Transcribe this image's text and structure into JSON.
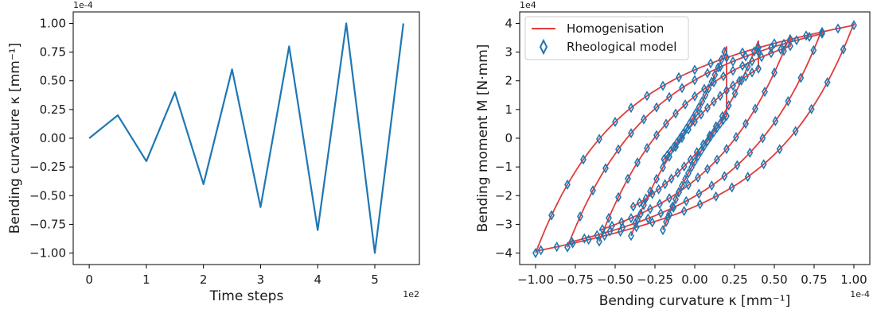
{
  "chart_data": [
    {
      "type": "line",
      "title": "",
      "xlabel": "Time steps",
      "ylabel": "Bending curvature κ [mm⁻¹]",
      "x_offset_label": "1e2",
      "y_offset_label": "1e-4",
      "xlim": [
        -0.28,
        5.78
      ],
      "ylim": [
        -1.1,
        1.1
      ],
      "x_ticks": [
        0,
        1,
        2,
        3,
        4,
        5
      ],
      "x_tick_labels": [
        "0",
        "1",
        "2",
        "3",
        "4",
        "5"
      ],
      "y_ticks": [
        -1.0,
        -0.75,
        -0.5,
        -0.25,
        0.0,
        0.25,
        0.5,
        0.75,
        1.0
      ],
      "y_tick_labels": [
        "−1.00",
        "−0.75",
        "−0.50",
        "−0.25",
        "0.00",
        "0.25",
        "0.50",
        "0.75",
        "1.00"
      ],
      "grid": false,
      "series": [
        {
          "color": "#1f77b4",
          "x": [
            0,
            0.5,
            1.0,
            1.5,
            2.0,
            2.5,
            3.0,
            3.5,
            4.0,
            4.5,
            5.0,
            5.5
          ],
          "y": [
            0.0,
            0.2,
            -0.2,
            0.4,
            -0.4,
            0.6,
            -0.6,
            0.8,
            -0.8,
            1.0,
            -1.0,
            1.0
          ]
        }
      ]
    },
    {
      "type": "line",
      "title": "",
      "xlabel": "Bending curvature κ [mm⁻¹]",
      "ylabel": "Bending moment M [N·mm]",
      "x_offset_label": "1e-4",
      "y_offset_label": "1e4",
      "xlim": [
        -1.1,
        1.1
      ],
      "ylim": [
        -4.4,
        4.4
      ],
      "x_ticks": [
        -1.0,
        -0.75,
        -0.5,
        -0.25,
        0.0,
        0.25,
        0.5,
        0.75,
        1.0
      ],
      "x_tick_labels": [
        "−1.00",
        "−0.75",
        "−0.50",
        "−0.25",
        "0.00",
        "0.25",
        "0.50",
        "0.75",
        "1.00"
      ],
      "y_ticks": [
        -4,
        -3,
        -2,
        -1,
        0,
        1,
        2,
        3,
        4
      ],
      "y_tick_labels": [
        "−4",
        "−3",
        "−2",
        "−1",
        "0",
        "1",
        "2",
        "3",
        "4"
      ],
      "grid": false,
      "legend_position": "top-left",
      "series": [
        {
          "name": "Homogenisation",
          "style": "line",
          "color": "#e03c3c",
          "loops": [
            0.2,
            0.4,
            0.6,
            0.8,
            1.0
          ]
        },
        {
          "name": "Rheological model",
          "style": "diamond-markers",
          "color": "#1f77b4",
          "loops": [
            0.2,
            0.4,
            0.6,
            0.8,
            1.0
          ]
        }
      ]
    }
  ]
}
